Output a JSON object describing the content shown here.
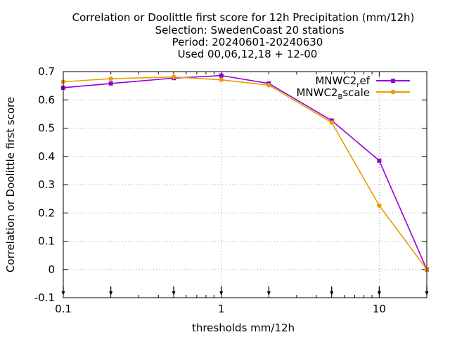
{
  "chart_data": {
    "type": "line",
    "title_lines": [
      "Correlation or Doolittle first score  for 12h Precipitation (mm/12h)",
      "Selection: SwedenCoast      20 stations",
      "Period: 20240601-20240630",
      "Used 00,06,12,18 + 12-00"
    ],
    "xlabel": "thresholds mm/12h",
    "ylabel": "Correlation or Doolittle first score",
    "x_scale": "log",
    "xlim": [
      0.1,
      20
    ],
    "ylim": [
      -0.1,
      0.7
    ],
    "x_ticks": [
      {
        "value": 0.1,
        "label": "0.1"
      },
      {
        "value": 1,
        "label": "1"
      },
      {
        "value": 10,
        "label": "10"
      }
    ],
    "y_ticks": [
      {
        "value": -0.1,
        "label": "-0.1"
      },
      {
        "value": 0,
        "label": "0"
      },
      {
        "value": 0.1,
        "label": "0.1"
      },
      {
        "value": 0.2,
        "label": "0.2"
      },
      {
        "value": 0.3,
        "label": "0.3"
      },
      {
        "value": 0.4,
        "label": "0.4"
      },
      {
        "value": 0.5,
        "label": "0.5"
      },
      {
        "value": 0.6,
        "label": "0.6"
      },
      {
        "value": 0.7,
        "label": "0.7"
      }
    ],
    "grid": true,
    "legend_position": "top-right",
    "x": [
      0.1,
      0.2,
      0.5,
      1,
      2,
      5,
      10,
      20
    ],
    "series": [
      {
        "name_main": "MNWC2",
        "name_sub": "r",
        "name_rest": "ef",
        "color": "#9400d3",
        "marker": "square",
        "values": [
          0.643,
          0.658,
          0.677,
          0.686,
          0.658,
          0.527,
          0.385,
          0.0
        ]
      },
      {
        "name_main": "MNWC2",
        "name_sub": "B",
        "name_rest": "scale",
        "color": "#e69f00",
        "marker": "circle",
        "values": [
          0.664,
          0.675,
          0.681,
          0.671,
          0.652,
          0.52,
          0.226,
          0.0
        ]
      }
    ],
    "arrow_markers_x": [
      0.1,
      0.2,
      0.5,
      1,
      2,
      5,
      10,
      20
    ]
  }
}
